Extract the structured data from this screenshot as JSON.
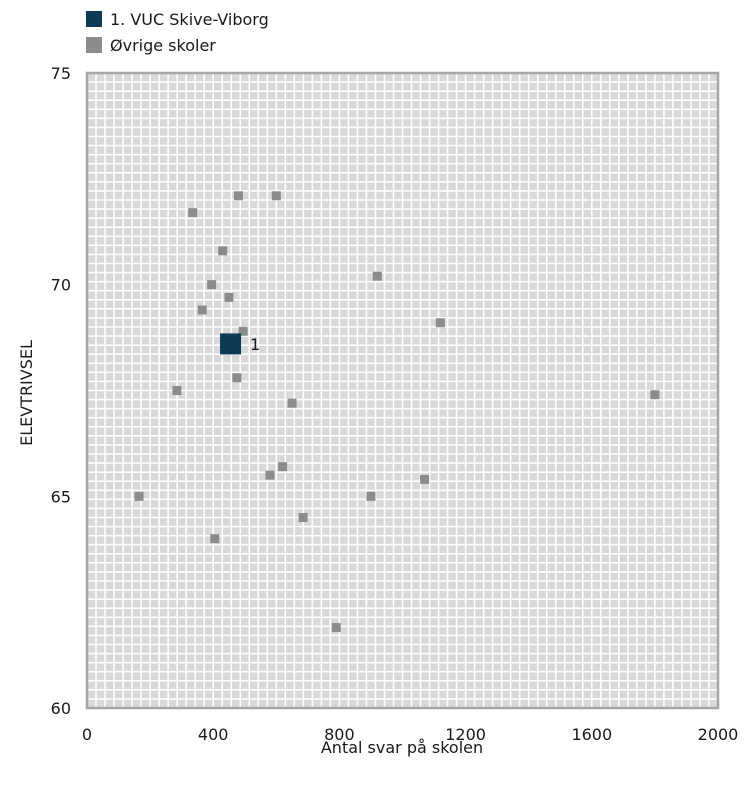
{
  "chart_data": {
    "type": "scatter",
    "xlabel": "Antal svar på skolen",
    "ylabel": "ELEVTRIVSEL",
    "xlim": [
      0,
      2000
    ],
    "ylim": [
      60,
      75
    ],
    "xticks": [
      0,
      400,
      800,
      1200,
      1600,
      2000
    ],
    "yticks": [
      60,
      65,
      70,
      75
    ],
    "grid": true,
    "legend_position": "top-left",
    "series": [
      {
        "name": "1. VUC Skive-Viborg",
        "color": "#0d3a56",
        "marker": "large-square",
        "points": [
          {
            "x": 455,
            "y": 68.6,
            "label": "1"
          }
        ]
      },
      {
        "name": "Øvrige skoler",
        "color": "#8c8c8c",
        "marker": "square",
        "points": [
          {
            "x": 165,
            "y": 65.0
          },
          {
            "x": 285,
            "y": 67.5
          },
          {
            "x": 335,
            "y": 71.7
          },
          {
            "x": 365,
            "y": 69.4
          },
          {
            "x": 395,
            "y": 70.0
          },
          {
            "x": 405,
            "y": 64.0
          },
          {
            "x": 430,
            "y": 70.8
          },
          {
            "x": 450,
            "y": 69.7
          },
          {
            "x": 475,
            "y": 67.8
          },
          {
            "x": 480,
            "y": 72.1
          },
          {
            "x": 495,
            "y": 68.9
          },
          {
            "x": 580,
            "y": 65.5
          },
          {
            "x": 600,
            "y": 72.1
          },
          {
            "x": 620,
            "y": 65.7
          },
          {
            "x": 650,
            "y": 67.2
          },
          {
            "x": 685,
            "y": 64.5
          },
          {
            "x": 790,
            "y": 61.9
          },
          {
            "x": 900,
            "y": 65.0
          },
          {
            "x": 920,
            "y": 70.2
          },
          {
            "x": 1070,
            "y": 65.4
          },
          {
            "x": 1120,
            "y": 69.1
          },
          {
            "x": 1800,
            "y": 67.4
          }
        ]
      }
    ]
  },
  "colors": {
    "plot_background": "#d9d9d9",
    "grid": "#ffffff",
    "border": "#a6a6a6"
  }
}
